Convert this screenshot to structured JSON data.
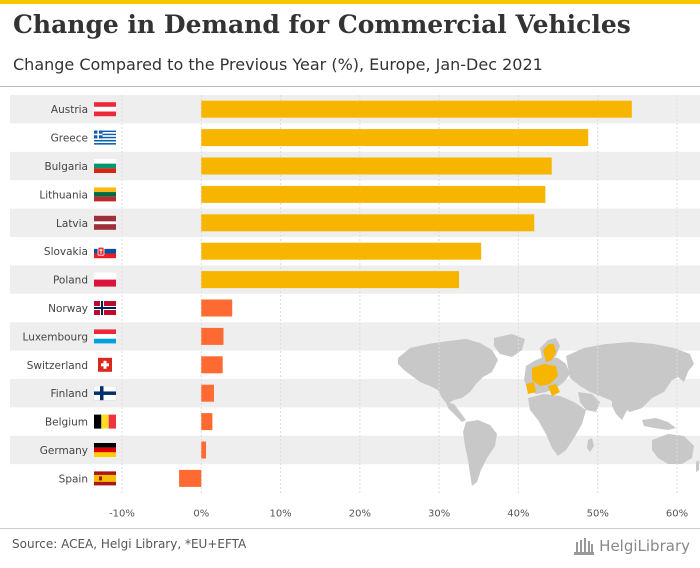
{
  "header": {
    "title": "Change in Demand for Commercial Vehicles",
    "subtitle": "Change Compared to the Previous Year (%), Europe, Jan-Dec 2021"
  },
  "footer": {
    "source": "Source: ACEA, Helgi Library, *EU+EFTA",
    "logo": "HelgiLibrary"
  },
  "colors": {
    "accent": "#f7c800",
    "bar_high": "#f7b500",
    "bar_low": "#ff6a33",
    "row_stripe": "#eeeeee",
    "map": "#c8c8c8",
    "map_highlight": "#f7b500"
  },
  "chart_data": {
    "type": "bar",
    "orientation": "horizontal",
    "categories": [
      "Austria",
      "Greece",
      "Bulgaria",
      "Lithuania",
      "Latvia",
      "Slovakia",
      "Poland",
      "Norway",
      "Luxembourg",
      "Switzerland",
      "Finland",
      "Belgium",
      "Germany",
      "Spain"
    ],
    "flags": [
      "austria-flag",
      "greece-flag",
      "bulgaria-flag",
      "lithuania-flag",
      "latvia-flag",
      "slovakia-flag",
      "poland-flag",
      "norway-flag",
      "luxembourg-flag",
      "switzerland-flag",
      "finland-flag",
      "belgium-flag",
      "germany-flag",
      "spain-flag"
    ],
    "values": [
      54.3,
      48.8,
      44.2,
      43.4,
      42.0,
      35.3,
      32.5,
      3.9,
      2.8,
      2.7,
      1.6,
      1.4,
      0.6,
      -2.8
    ],
    "bar_colors": [
      "#f7b500",
      "#f7b500",
      "#f7b500",
      "#f7b500",
      "#f7b500",
      "#f7b500",
      "#f7b500",
      "#ff6a33",
      "#ff6a33",
      "#ff6a33",
      "#ff6a33",
      "#ff6a33",
      "#ff6a33",
      "#ff6a33"
    ],
    "xlim": [
      -10,
      60
    ],
    "xticks": [
      -10,
      0,
      10,
      20,
      30,
      40,
      50,
      60
    ],
    "xtick_labels": [
      "-10%",
      "0%",
      "10%",
      "20%",
      "30%",
      "40%",
      "50%",
      "60%"
    ],
    "gridlines": true,
    "xlabel": "",
    "ylabel": ""
  }
}
